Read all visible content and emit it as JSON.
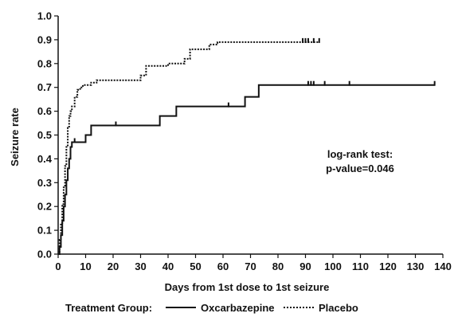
{
  "chart_data": {
    "type": "line",
    "title": "",
    "xlabel": "Days from 1st dose to 1st seizure",
    "ylabel": "Seizure rate",
    "xlim": [
      0,
      140
    ],
    "ylim": [
      0,
      1.0
    ],
    "xticks": [
      0,
      10,
      20,
      30,
      40,
      50,
      60,
      70,
      80,
      90,
      100,
      110,
      120,
      130,
      140
    ],
    "yticks": [
      "0.0",
      "0.1",
      "0.2",
      "0.3",
      "0.4",
      "0.5",
      "0.6",
      "0.7",
      "0.8",
      "0.9",
      "1.0"
    ],
    "grid": false,
    "legend": {
      "placement": "bottom",
      "title": "Treatment Group:",
      "entries": [
        "Oxcarbazepine",
        "Placebo"
      ]
    },
    "annotations": [
      "log-rank test:",
      "p-value=0.046"
    ],
    "series": [
      {
        "name": "Oxcarbazepine",
        "style": "solid",
        "color": "#111111",
        "x": [
          0,
          0.5,
          1,
          1.5,
          2,
          2.5,
          3,
          3.5,
          4,
          4.5,
          5,
          5.5,
          10,
          12,
          14,
          37,
          43,
          68,
          73,
          137
        ],
        "y": [
          0,
          0.03,
          0.08,
          0.14,
          0.2,
          0.25,
          0.31,
          0.36,
          0.4,
          0.45,
          0.47,
          0.47,
          0.5,
          0.54,
          0.54,
          0.58,
          0.62,
          0.66,
          0.71,
          0.71
        ],
        "censored": [
          6,
          21,
          62,
          91,
          92,
          93,
          97,
          106,
          137
        ]
      },
      {
        "name": "Placebo",
        "style": "dotted",
        "color": "#111111",
        "x": [
          0,
          0.5,
          1,
          1.5,
          2,
          2.5,
          3,
          3.5,
          4,
          4.5,
          5,
          6,
          7,
          8,
          9,
          12,
          14,
          30,
          32,
          40,
          46,
          48,
          55,
          58,
          95
        ],
        "y": [
          0,
          0.06,
          0.13,
          0.21,
          0.28,
          0.37,
          0.45,
          0.53,
          0.58,
          0.6,
          0.62,
          0.66,
          0.69,
          0.7,
          0.71,
          0.72,
          0.73,
          0.75,
          0.79,
          0.8,
          0.82,
          0.86,
          0.88,
          0.89,
          0.89
        ],
        "censored": [
          89,
          90,
          91,
          93,
          95
        ]
      }
    ]
  }
}
